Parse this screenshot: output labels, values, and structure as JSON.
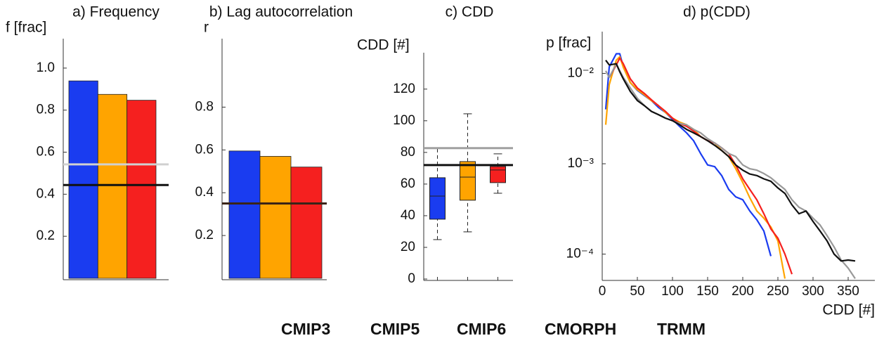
{
  "legend": [
    {
      "name": "CMIP3",
      "color": "#1a3cf0"
    },
    {
      "name": "CMIP5",
      "color": "#ffa400"
    },
    {
      "name": "CMIP6",
      "color": "#f5201f"
    },
    {
      "name": "CMORPH",
      "color": "#999999"
    },
    {
      "name": "TRMM",
      "color": "#111111"
    }
  ],
  "chart_data": [
    {
      "type": "bar",
      "title": "a)  Frequency",
      "ylabel": "f [frac]",
      "values": [
        0.939,
        0.875,
        0.847
      ],
      "colors": [
        "#1a3cf0",
        "#ffa400",
        "#f5201f"
      ],
      "ylim": [
        0,
        1.14
      ],
      "yticks": [
        0.2,
        0.4,
        0.6,
        0.8,
        {
          "value": 1,
          "label": "1.0"
        }
      ],
      "hlines": [
        {
          "value": 0.542,
          "color": "#d0d0d0"
        },
        {
          "value": 0.444,
          "color": "#111111"
        }
      ]
    },
    {
      "type": "bar",
      "title": "b)  Lag autocorrelation",
      "ylabel": "r",
      "values": [
        0.595,
        0.57,
        0.52
      ],
      "colors": [
        "#1a3cf0",
        "#ffa400",
        "#f5201f"
      ],
      "ylim": [
        0,
        1.12
      ],
      "yticks": [
        0.2,
        0.4,
        0.6,
        0.8
      ],
      "hlines": [
        {
          "value": 0.35,
          "color": "#3a2418"
        }
      ]
    },
    {
      "type": "box",
      "title": "c)   CDD",
      "ylabel": "CDD [#]",
      "boxes": [
        {
          "min": 24.9,
          "q1": 37.8,
          "median": 52.4,
          "q3": 64,
          "max": 82.7,
          "color": "#1a3cf0"
        },
        {
          "min": 29.8,
          "q1": 49.8,
          "median": 64.4,
          "q3": 74.2,
          "max": 104.4,
          "color": "#ffa400"
        },
        {
          "min": 54.2,
          "q1": 60.9,
          "median": 68.9,
          "q3": 71.1,
          "max": 79.1,
          "color": "#f5201f"
        }
      ],
      "ylim": [
        0,
        143
      ],
      "yticks": [
        0,
        20,
        40,
        60,
        80,
        100,
        120
      ],
      "hlines": [
        {
          "value": 82.7,
          "color": "#a0a0a0"
        },
        {
          "value": 72,
          "color": "#111111"
        }
      ]
    },
    {
      "type": "line",
      "title": "d)  p(CDD)",
      "ylabel": "p [frac]",
      "xlabel": "CDD [#]",
      "log_y": true,
      "x": [
        5,
        10,
        20,
        25,
        30,
        40,
        50,
        60,
        70,
        80,
        90,
        100,
        110,
        120,
        130,
        140,
        150,
        160,
        170,
        180,
        190,
        200,
        210,
        220,
        230,
        240,
        250,
        260,
        270,
        280,
        290,
        300,
        310,
        320,
        330,
        340,
        350,
        360
      ],
      "series": [
        {
          "color": "#1a3cf0",
          "values": [
            0.004,
            0.0118,
            0.0165,
            0.0165,
            0.0118,
            0.0079,
            0.0065,
            0.0057,
            0.005,
            0.0042,
            0.0037,
            0.0031,
            0.0026,
            0.0022,
            0.0018,
            0.0013,
            0.00097,
            0.00093,
            0.00074,
            0.00052,
            0.00043,
            0.0004,
            0.0003,
            0.00024,
            0.00018,
            9.5e-05,
            null,
            null,
            null,
            null,
            null,
            null,
            null,
            null,
            null,
            null,
            null,
            null
          ]
        },
        {
          "color": "#ffa400",
          "values": [
            0.0027,
            0.0075,
            0.014,
            0.0153,
            0.0117,
            0.0079,
            0.0066,
            0.0058,
            0.005,
            0.0044,
            0.0037,
            0.0032,
            0.0029,
            0.0027,
            0.0024,
            0.002,
            0.0018,
            0.0017,
            0.0014,
            0.0012,
            0.00088,
            0.00062,
            0.00042,
            0.0003,
            0.00025,
            0.0002,
            0.00014,
            5.36e-05,
            null,
            null,
            null,
            null,
            null,
            null,
            null,
            null,
            null,
            null
          ]
        },
        {
          "color": "#f5201f",
          "values": [
            null,
            0.009,
            0.0124,
            0.0148,
            0.0128,
            0.0087,
            0.0069,
            0.006,
            0.0051,
            0.0044,
            0.0038,
            0.0032,
            0.0028,
            0.0026,
            0.0023,
            0.002,
            0.0018,
            0.0017,
            0.0015,
            0.0013,
            0.00097,
            0.00068,
            0.00052,
            0.0004,
            0.00028,
            0.00019,
            0.00015,
            0.0001,
            6e-05,
            null,
            null,
            null,
            null,
            null,
            null,
            null,
            null,
            null
          ]
        },
        {
          "color": "#999999",
          "values": [
            0.0107,
            0.009,
            0.0128,
            0.0107,
            0.009,
            0.0069,
            0.0053,
            0.0044,
            0.0038,
            0.0035,
            0.0032,
            0.003,
            0.0028,
            0.0027,
            0.0024,
            0.0022,
            0.0019,
            0.0017,
            0.0015,
            0.0013,
            0.0012,
            0.00097,
            0.00088,
            0.00085,
            0.00078,
            0.0007,
            0.0006,
            0.00052,
            0.0004,
            0.00033,
            0.0003,
            0.00025,
            0.00021,
            0.00016,
            0.00012,
            8.6e-05,
            7e-05,
            5.36e-05
          ]
        },
        {
          "color": "#111111",
          "values": [
            0.014,
            0.0124,
            0.0128,
            0.0104,
            0.0087,
            0.0063,
            0.005,
            0.0044,
            0.0038,
            0.0035,
            0.0032,
            0.003,
            0.0027,
            0.0024,
            0.0022,
            0.002,
            0.0018,
            0.0016,
            0.0014,
            0.0012,
            0.00097,
            0.00085,
            0.00077,
            0.00074,
            0.00068,
            0.00064,
            0.00054,
            0.00047,
            0.00035,
            0.00028,
            0.0003,
            0.00023,
            0.00018,
            0.00014,
            0.0001,
            8.4e-05,
            8.6e-05,
            8.4e-05
          ]
        }
      ],
      "xlim": [
        0,
        388
      ],
      "xticks": [
        0,
        50,
        100,
        150,
        200,
        250,
        300,
        350
      ],
      "ylim": [
        5.3e-05,
        0.029
      ],
      "yticks": [
        {
          "value": 0.0001,
          "label": "10⁻⁴"
        },
        {
          "value": 0.001,
          "label": "10⁻³"
        },
        {
          "value": 0.01,
          "label": "10⁻²"
        }
      ]
    }
  ]
}
